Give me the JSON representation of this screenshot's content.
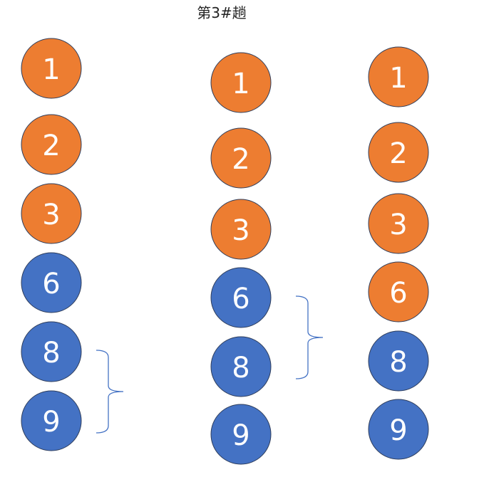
{
  "title": "第3#趟",
  "colors": {
    "orange": "#ED7D31",
    "blue": "#4472C4",
    "outline": "#2F3E5C",
    "bracket": "#4472C4"
  },
  "columns": [
    {
      "name": "column-1",
      "balls": [
        {
          "label": "1",
          "color": "orange"
        },
        {
          "label": "2",
          "color": "orange"
        },
        {
          "label": "3",
          "color": "orange"
        },
        {
          "label": "6",
          "color": "blue"
        },
        {
          "label": "8",
          "color": "blue"
        },
        {
          "label": "9",
          "color": "blue"
        }
      ],
      "bracket_spans": [
        "8",
        "9"
      ]
    },
    {
      "name": "column-2",
      "balls": [
        {
          "label": "1",
          "color": "orange"
        },
        {
          "label": "2",
          "color": "orange"
        },
        {
          "label": "3",
          "color": "orange"
        },
        {
          "label": "6",
          "color": "blue"
        },
        {
          "label": "8",
          "color": "blue"
        },
        {
          "label": "9",
          "color": "blue"
        }
      ],
      "bracket_spans": [
        "6",
        "8"
      ]
    },
    {
      "name": "column-3",
      "balls": [
        {
          "label": "1",
          "color": "orange"
        },
        {
          "label": "2",
          "color": "orange"
        },
        {
          "label": "3",
          "color": "orange"
        },
        {
          "label": "6",
          "color": "orange"
        },
        {
          "label": "8",
          "color": "blue"
        },
        {
          "label": "9",
          "color": "blue"
        }
      ],
      "bracket_spans": []
    }
  ]
}
